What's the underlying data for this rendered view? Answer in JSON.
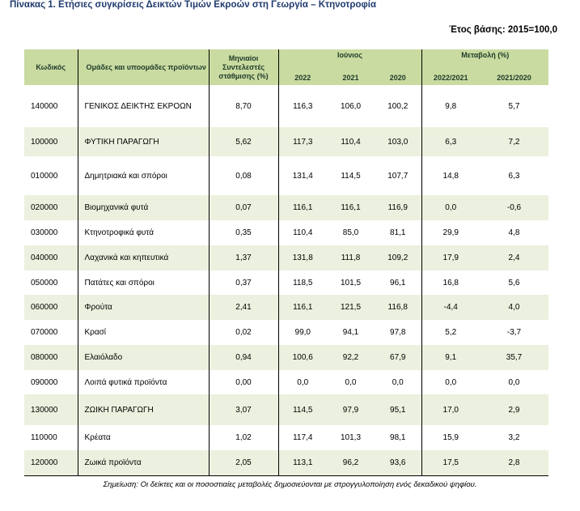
{
  "title": "Πίνακας 1. Ετήσιες συγκρίσεις Δεικτών Τιμών Εκροών στη Γεωργία – Κτηνοτροφία",
  "base_year": "Έτος βάσης: 2015=100,0",
  "header": {
    "code": "Κωδικός",
    "group": "Ομάδες και υποομάδες προϊόντων",
    "weights": "Μηνιαίοι Συντελεστές στάθμισης (%)",
    "june": "Ιούνιος",
    "change": "Μεταβολή (%)",
    "y2022": "2022",
    "y2021": "2021",
    "y2020": "2020",
    "ch1": "2022/2021",
    "ch2": "2021/2020"
  },
  "rows": [
    {
      "code": "140000",
      "name": "ΓΕΝΙΚΟΣ ΔΕΙΚΤΗΣ ΕΚΡΟΩΝ",
      "weight": "8,70",
      "v2022": "116,3",
      "v2021": "106,0",
      "v2020": "100,2",
      "ch1": "9,8",
      "ch2": "5,7"
    },
    {
      "code": "100000",
      "name": "ΦΥΤΙΚΗ ΠΑΡΑΓΩΓΗ",
      "weight": "5,62",
      "v2022": "117,3",
      "v2021": "110,4",
      "v2020": "103,0",
      "ch1": "6,3",
      "ch2": "7,2"
    },
    {
      "code": "010000",
      "name": "Δημητριακά και σπόροι",
      "weight": "0,08",
      "v2022": "131,4",
      "v2021": "114,5",
      "v2020": "107,7",
      "ch1": "14,8",
      "ch2": "6,3"
    },
    {
      "code": "020000",
      "name": "Βιομηχανικά φυτά",
      "weight": "0,07",
      "v2022": "116,1",
      "v2021": "116,1",
      "v2020": "116,9",
      "ch1": "0,0",
      "ch2": "-0,6"
    },
    {
      "code": "030000",
      "name": "Κτηνοτροφικά φυτά",
      "weight": "0,35",
      "v2022": "110,4",
      "v2021": "85,0",
      "v2020": "81,1",
      "ch1": "29,9",
      "ch2": "4,8"
    },
    {
      "code": "040000",
      "name": "Λαχανικά και κηπευτικά",
      "weight": "1,37",
      "v2022": "131,8",
      "v2021": "111,8",
      "v2020": "109,2",
      "ch1": "17,9",
      "ch2": "2,4"
    },
    {
      "code": "050000",
      "name": "Πατάτες και σπόροι",
      "weight": "0,37",
      "v2022": "118,5",
      "v2021": "101,5",
      "v2020": "96,1",
      "ch1": "16,8",
      "ch2": "5,6"
    },
    {
      "code": "060000",
      "name": "Φρούτα",
      "weight": "2,41",
      "v2022": "116,1",
      "v2021": "121,5",
      "v2020": "116,8",
      "ch1": "-4,4",
      "ch2": "4,0"
    },
    {
      "code": "070000",
      "name": "Κρασί",
      "weight": "0,02",
      "v2022": "99,0",
      "v2021": "94,1",
      "v2020": "97,8",
      "ch1": "5,2",
      "ch2": "-3,7"
    },
    {
      "code": "080000",
      "name": "Ελαιόλαδο",
      "weight": "0,94",
      "v2022": "100,6",
      "v2021": "92,2",
      "v2020": "67,9",
      "ch1": "9,1",
      "ch2": "35,7"
    },
    {
      "code": "090000",
      "name": "Λοιπά φυτικά προϊόντα",
      "weight": "0,00",
      "v2022": "0,0",
      "v2021": "0,0",
      "v2020": "0,0",
      "ch1": "0,0",
      "ch2": "0,0"
    },
    {
      "code": "130000",
      "name": "ΖΩΙΚΗ ΠΑΡΑΓΩΓΗ",
      "weight": "3,07",
      "v2022": "114,5",
      "v2021": "97,9",
      "v2020": "95,1",
      "ch1": "17,0",
      "ch2": "2,9"
    },
    {
      "code": "110000",
      "name": "Κρέατα",
      "weight": "1,02",
      "v2022": "117,4",
      "v2021": "101,3",
      "v2020": "98,1",
      "ch1": "15,9",
      "ch2": "3,2"
    },
    {
      "code": "120000",
      "name": "Ζωικά προϊόντα",
      "weight": "2,05",
      "v2022": "113,1",
      "v2021": "96,2",
      "v2020": "93,6",
      "ch1": "17,5",
      "ch2": "2,8"
    }
  ],
  "note": "Σημείωση: Οι δείκτες και οι ποσοστιαίες μεταβολές δημοσιεύονται με στρογγυλοποίηση ενός δεκαδικού ψηφίου."
}
